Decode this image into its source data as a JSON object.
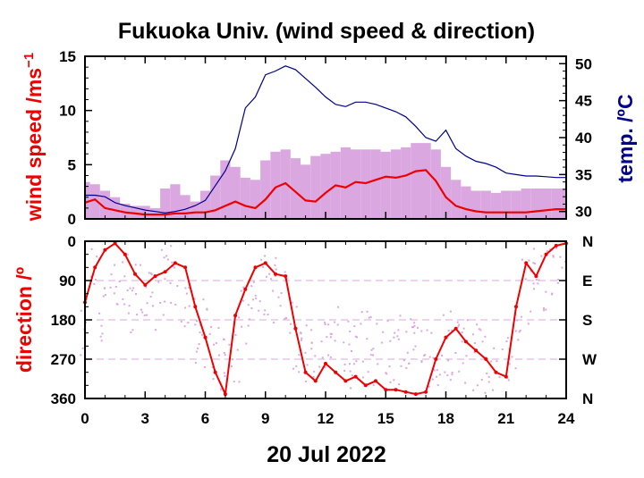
{
  "chart_data": [
    {
      "type": "line",
      "title": "Fukuoka Univ. (wind speed & direction)",
      "ylabel": "wind speed /ms",
      "ylabel_sup": "−1",
      "y2label": "temp. /ºC",
      "xlim": [
        0,
        24
      ],
      "ylim": [
        0,
        15
      ],
      "y2lim": [
        29,
        51
      ],
      "x_ticks": [
        "0",
        "3",
        "6",
        "9",
        "12",
        "15",
        "18",
        "21",
        "24"
      ],
      "y_ticks": [
        "0",
        "5",
        "10",
        "15"
      ],
      "y2_ticks": [
        "30",
        "35",
        "40",
        "45",
        "50"
      ],
      "colors": {
        "speed": "#ee0000",
        "gust": "#dba7e0",
        "temp": "#00008b"
      },
      "series": [
        {
          "key": "wind_speed_mean",
          "x": [
            0,
            0.5,
            1,
            1.5,
            2,
            2.5,
            3,
            3.5,
            4,
            4.5,
            5,
            5.5,
            6,
            6.5,
            7,
            7.5,
            8,
            8.5,
            9,
            9.5,
            10,
            10.5,
            11,
            11.5,
            12,
            12.5,
            13,
            13.5,
            14,
            14.5,
            15,
            15.5,
            16,
            16.5,
            17,
            17.5,
            18,
            18.5,
            19,
            19.5,
            20,
            20.5,
            21,
            21.5,
            22,
            22.5,
            23,
            23.5,
            24
          ],
          "values": [
            1.5,
            1.8,
            1.0,
            0.8,
            0.6,
            0.5,
            0.4,
            0.4,
            0.4,
            0.5,
            0.5,
            0.6,
            0.6,
            0.8,
            1.2,
            1.6,
            1.2,
            1.0,
            1.8,
            2.9,
            3.3,
            2.5,
            1.7,
            1.6,
            2.4,
            3.1,
            2.9,
            3.4,
            3.3,
            3.6,
            3.9,
            3.8,
            4.0,
            4.4,
            4.5,
            3.5,
            2.0,
            1.2,
            0.9,
            0.7,
            0.6,
            0.6,
            0.6,
            0.6,
            0.6,
            0.7,
            0.8,
            0.9,
            0.9
          ]
        },
        {
          "key": "wind_speed_gust",
          "x": [
            0,
            0.5,
            1,
            1.5,
            2,
            2.5,
            3,
            3.5,
            4,
            4.5,
            5,
            5.5,
            6,
            6.5,
            7,
            7.5,
            8,
            8.5,
            9,
            9.5,
            10,
            10.5,
            11,
            11.5,
            12,
            12.5,
            13,
            13.5,
            14,
            14.5,
            15,
            15.5,
            16,
            16.5,
            17,
            17.5,
            18,
            18.5,
            19,
            19.5,
            20,
            20.5,
            21,
            21.5,
            22,
            22.5,
            23,
            23.5,
            24
          ],
          "values": [
            3.4,
            3.2,
            2.6,
            2.0,
            1.4,
            1.2,
            1.2,
            1.0,
            2.8,
            3.2,
            2.2,
            1.6,
            2.6,
            4.0,
            5.4,
            4.8,
            3.8,
            3.6,
            5.4,
            6.2,
            6.4,
            5.6,
            5.0,
            5.8,
            6.0,
            6.2,
            6.6,
            6.4,
            6.4,
            6.4,
            6.2,
            6.4,
            6.6,
            7.0,
            7.0,
            6.4,
            4.8,
            3.6,
            3.0,
            2.6,
            2.6,
            2.4,
            2.6,
            2.6,
            2.8,
            2.8,
            2.8,
            2.8,
            2.8
          ]
        },
        {
          "key": "temperature",
          "axis": "y2",
          "x": [
            0,
            0.5,
            1,
            1.5,
            2,
            2.5,
            3,
            3.5,
            4,
            4.5,
            5,
            5.5,
            6,
            6.5,
            7,
            7.5,
            8,
            8.5,
            9,
            9.5,
            10,
            10.5,
            11,
            11.5,
            12,
            12.5,
            13,
            13.5,
            14,
            14.5,
            15,
            15.5,
            16,
            16.5,
            17,
            17.5,
            18,
            18.5,
            19,
            19.5,
            20,
            20.5,
            21,
            21.5,
            22,
            22.5,
            23,
            23.5,
            24
          ],
          "values": [
            32.2,
            32.2,
            32.0,
            31.2,
            30.8,
            30.5,
            30.2,
            30.0,
            29.8,
            30.0,
            30.3,
            30.8,
            31.5,
            33.5,
            35.5,
            38.5,
            44.0,
            45.5,
            48.5,
            49.0,
            49.7,
            49.2,
            48.0,
            46.8,
            45.5,
            44.5,
            44.2,
            44.8,
            44.8,
            44.5,
            44.0,
            43.5,
            42.8,
            41.5,
            40.0,
            39.5,
            41.0,
            38.5,
            37.5,
            36.8,
            36.5,
            36.0,
            35.2,
            35.0,
            34.8,
            34.8,
            34.7,
            34.6,
            34.6
          ]
        }
      ]
    },
    {
      "type": "scatter",
      "ylabel": "direction /º",
      "xlabel": "20 Jul 2022",
      "xlim": [
        0,
        24
      ],
      "ylim": [
        0,
        360
      ],
      "y_inverted": true,
      "x_ticks": [
        "0",
        "3",
        "6",
        "9",
        "12",
        "15",
        "18",
        "21",
        "24"
      ],
      "y_ticks": [
        "0",
        "90",
        "180",
        "270",
        "360"
      ],
      "y2_ticks": [
        "N",
        "E",
        "S",
        "W",
        "N"
      ],
      "colors": {
        "mean": "#ee0000",
        "gust": "#dba7e0"
      },
      "series": [
        {
          "key": "direction_mean",
          "x": [
            0,
            0.5,
            1,
            1.5,
            2,
            2.5,
            3,
            3.5,
            4,
            4.5,
            5,
            5.5,
            6,
            6.5,
            7,
            7.5,
            8,
            8.5,
            9,
            9.5,
            10,
            10.5,
            11,
            11.5,
            12,
            12.5,
            13,
            13.5,
            14,
            14.5,
            15,
            15.5,
            16,
            16.5,
            17,
            17.5,
            18,
            18.5,
            19,
            19.5,
            20,
            20.5,
            21,
            21.5,
            22,
            22.5,
            23,
            23.5,
            24
          ],
          "values": [
            140,
            60,
            20,
            5,
            30,
            75,
            100,
            80,
            70,
            50,
            60,
            150,
            220,
            300,
            350,
            170,
            110,
            60,
            50,
            75,
            80,
            200,
            300,
            320,
            280,
            300,
            320,
            310,
            330,
            320,
            340,
            340,
            345,
            350,
            345,
            270,
            220,
            200,
            230,
            250,
            270,
            300,
            310,
            150,
            50,
            80,
            30,
            10,
            5
          ]
        },
        {
          "key": "direction_gust",
          "x": [
            0,
            0.5,
            1,
            1.5,
            2,
            2.5,
            3,
            3.5,
            4,
            4.5,
            5,
            5.5,
            6,
            6.5,
            7,
            7.5,
            8,
            8.5,
            9,
            9.5,
            10,
            10.5,
            11,
            11.5,
            12,
            12.5,
            13,
            13.5,
            14,
            14.5,
            15,
            15.5,
            16,
            16.5,
            17,
            17.5,
            18,
            18.5,
            19,
            19.5,
            20,
            20.5,
            21,
            21.5,
            22,
            22.5,
            23,
            23.5,
            24
          ],
          "values": [
            200,
            90,
            150,
            120,
            90,
            130,
            110,
            150,
            100,
            80,
            120,
            200,
            210,
            250,
            300,
            250,
            160,
            120,
            100,
            110,
            150,
            220,
            250,
            260,
            230,
            220,
            250,
            260,
            240,
            250,
            260,
            250,
            240,
            250,
            260,
            270,
            240,
            250,
            260,
            270,
            280,
            300,
            280,
            220,
            120,
            90,
            80,
            60,
            40
          ]
        }
      ]
    }
  ]
}
